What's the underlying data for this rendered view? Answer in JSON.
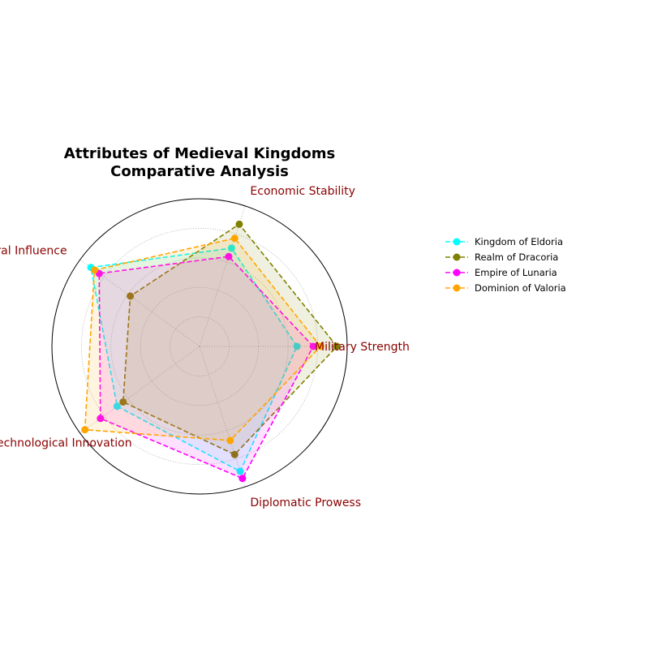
{
  "chart_data": {
    "type": "radar",
    "title_lines": [
      "Attributes of Medieval Kingdoms",
      "Comparative Analysis"
    ],
    "categories": [
      "Military Strength",
      "Economic Stability",
      "Cultural Influence",
      "Technological Innovation",
      "Diplomatic Prowess"
    ],
    "category_color": "#8b0000",
    "rmax": 100,
    "grid_levels": [
      20,
      40,
      60,
      80
    ],
    "series": [
      {
        "name": "Kingdom of Eldoria",
        "color": "#00ffff",
        "values": [
          66,
          70,
          91,
          69,
          89
        ]
      },
      {
        "name": "Realm of Dracoria",
        "color": "#808000",
        "values": [
          93,
          87,
          58,
          64,
          77
        ]
      },
      {
        "name": "Empire of Lunaria",
        "color": "#ff00ff",
        "values": [
          77,
          64,
          84,
          83,
          94
        ]
      },
      {
        "name": "Dominion of Valoria",
        "color": "#ffa500",
        "values": [
          82,
          77,
          88,
          96,
          67
        ]
      }
    ],
    "legend_position": "right"
  }
}
